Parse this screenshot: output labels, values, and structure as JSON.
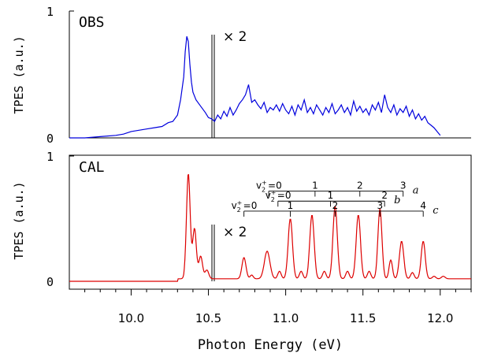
{
  "chart_data": {
    "type": "line",
    "xlabel": "Photon Energy (eV)",
    "xlim": [
      9.6,
      12.2
    ],
    "x_ticks": [
      10.0,
      10.5,
      11.0,
      11.5,
      12.0
    ],
    "x_tick_labels": [
      "10.0",
      "10.5",
      "11.0",
      "11.5",
      "12.0"
    ],
    "panels": [
      {
        "label": "OBS",
        "ylabel": "TPES (a.u.)",
        "ylim": [
          0,
          1
        ],
        "y_tick_labels": [
          "0",
          "1"
        ],
        "scale_annotation": "× 2",
        "scale_from_x": 10.54,
        "series": [
          {
            "color": "#0000dd",
            "x": [
              9.6,
              9.7,
              9.8,
              9.9,
              9.95,
              10.0,
              10.05,
              10.1,
              10.15,
              10.2,
              10.24,
              10.27,
              10.3,
              10.32,
              10.34,
              10.35,
              10.36,
              10.37,
              10.38,
              10.39,
              10.4,
              10.42,
              10.45,
              10.48,
              10.5,
              10.52,
              10.54,
              10.56,
              10.58,
              10.6,
              10.62,
              10.64,
              10.66,
              10.68,
              10.7,
              10.72,
              10.74,
              10.76,
              10.78,
              10.8,
              10.82,
              10.84,
              10.86,
              10.88,
              10.9,
              10.92,
              10.94,
              10.96,
              10.98,
              11.0,
              11.02,
              11.04,
              11.06,
              11.08,
              11.1,
              11.12,
              11.14,
              11.16,
              11.18,
              11.2,
              11.22,
              11.24,
              11.26,
              11.28,
              11.3,
              11.32,
              11.34,
              11.36,
              11.38,
              11.4,
              11.42,
              11.44,
              11.46,
              11.48,
              11.5,
              11.52,
              11.54,
              11.56,
              11.58,
              11.6,
              11.62,
              11.64,
              11.66,
              11.68,
              11.7,
              11.72,
              11.74,
              11.76,
              11.78,
              11.8,
              11.82,
              11.84,
              11.86,
              11.88,
              11.9,
              11.92,
              11.94,
              11.96,
              11.98,
              12.0
            ],
            "y": [
              0.0,
              0.0,
              0.01,
              0.02,
              0.03,
              0.05,
              0.06,
              0.07,
              0.08,
              0.09,
              0.12,
              0.13,
              0.18,
              0.3,
              0.48,
              0.68,
              0.8,
              0.76,
              0.58,
              0.44,
              0.36,
              0.3,
              0.25,
              0.2,
              0.16,
              0.15,
              0.13,
              0.18,
              0.15,
              0.21,
              0.17,
              0.24,
              0.18,
              0.22,
              0.27,
              0.3,
              0.34,
              0.42,
              0.28,
              0.3,
              0.26,
              0.23,
              0.28,
              0.2,
              0.24,
              0.22,
              0.26,
              0.21,
              0.27,
              0.22,
              0.19,
              0.25,
              0.18,
              0.26,
              0.22,
              0.3,
              0.2,
              0.24,
              0.19,
              0.26,
              0.22,
              0.18,
              0.24,
              0.2,
              0.27,
              0.19,
              0.22,
              0.26,
              0.2,
              0.24,
              0.18,
              0.29,
              0.21,
              0.25,
              0.2,
              0.23,
              0.18,
              0.26,
              0.22,
              0.28,
              0.2,
              0.34,
              0.24,
              0.2,
              0.26,
              0.18,
              0.23,
              0.2,
              0.25,
              0.17,
              0.22,
              0.15,
              0.19,
              0.14,
              0.17,
              0.12,
              0.1,
              0.08,
              0.05,
              0.02
            ]
          }
        ]
      },
      {
        "label": "CAL",
        "ylabel": "TPES (a.u.)",
        "ylim": [
          0,
          1
        ],
        "y_tick_labels": [
          "0",
          "1"
        ],
        "scale_annotation": "× 2",
        "scale_from_x": 10.54,
        "series": [
          {
            "color": "#dd0000",
            "peaks": [
              [
                10.37,
                0.84,
                0.012
              ],
              [
                10.41,
                0.4,
                0.012
              ],
              [
                10.45,
                0.18,
                0.012
              ],
              [
                10.49,
                0.07,
                0.012
              ],
              [
                10.73,
                0.17,
                0.013
              ],
              [
                10.88,
                0.22,
                0.018
              ],
              [
                11.03,
                0.48,
                0.014
              ],
              [
                11.17,
                0.51,
                0.014
              ],
              [
                11.32,
                0.58,
                0.014
              ],
              [
                11.47,
                0.51,
                0.014
              ],
              [
                11.61,
                0.56,
                0.013
              ],
              [
                11.75,
                0.3,
                0.014
              ],
              [
                11.89,
                0.3,
                0.013
              ],
              [
                10.78,
                0.03,
                0.01
              ],
              [
                10.96,
                0.06,
                0.011
              ],
              [
                11.1,
                0.06,
                0.011
              ],
              [
                11.25,
                0.06,
                0.011
              ],
              [
                11.4,
                0.06,
                0.011
              ],
              [
                11.54,
                0.06,
                0.011
              ],
              [
                11.68,
                0.15,
                0.011
              ],
              [
                11.82,
                0.05,
                0.011
              ],
              [
                11.96,
                0.02,
                0.011
              ],
              [
                12.02,
                0.02,
                0.012
              ]
            ],
            "onset_x": 10.3,
            "baseline_after_onset": 0.02
          }
        ]
      }
    ],
    "progressions": [
      {
        "letter": "a",
        "prefix": "v",
        "sup": "+",
        "sub": "2",
        "labels": [
          "=0",
          "1",
          "2",
          "3"
        ],
        "x": [
          10.89,
          11.19,
          11.48,
          11.76
        ],
        "label_y": 0.26
      },
      {
        "letter": "b",
        "prefix": "v",
        "sup": "+",
        "sub": "2",
        "labels": [
          "=0",
          "1",
          "2"
        ],
        "x": [
          10.95,
          11.29,
          11.64
        ],
        "label_y": 0.19
      },
      {
        "letter": "c",
        "prefix": "v",
        "sup": "+",
        "sub": "2",
        "labels": [
          "=0",
          "1",
          "2",
          "3",
          "4"
        ],
        "x": [
          10.73,
          11.03,
          11.32,
          11.61,
          11.89
        ],
        "label_y": 0.11
      }
    ]
  }
}
